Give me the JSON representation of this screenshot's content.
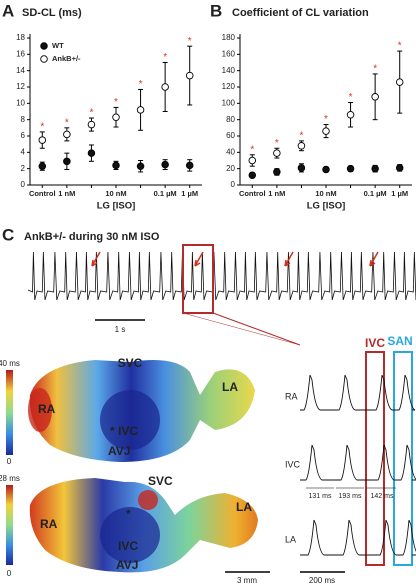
{
  "chart_data": [
    {
      "type": "dot",
      "panel": "A",
      "title": "SD-CL (ms)",
      "x_label": "LG [ISO]",
      "categories": [
        "Control",
        "1 nM",
        null,
        "10 nM",
        null,
        "0.1 µM",
        "1 µM"
      ],
      "ylim": [
        0,
        18
      ],
      "yticks": [
        0,
        2,
        4,
        6,
        8,
        10,
        12,
        14,
        16,
        18
      ],
      "legend": "upper left",
      "series": [
        {
          "name": "WT",
          "color": "#111111",
          "values": [
            2.3,
            2.9,
            3.9,
            2.4,
            2.3,
            2.5,
            2.4
          ],
          "errors": [
            0.5,
            1.0,
            1.0,
            0.5,
            0.7,
            0.6,
            0.7
          ]
        },
        {
          "name": "AnkB+/-",
          "color": "#ffffff",
          "values": [
            5.5,
            6.2,
            7.4,
            8.3,
            9.2,
            12,
            13.4
          ],
          "errors": [
            1.0,
            0.8,
            0.8,
            1.2,
            2.5,
            3.0,
            3.6
          ],
          "annotations": [
            "*",
            "*",
            "*",
            "*",
            "*",
            "*",
            "*"
          ]
        }
      ]
    },
    {
      "type": "dot",
      "panel": "B",
      "title": "Coefficient of CL variation",
      "x_label": "LG [ISO]",
      "categories": [
        "Control",
        "1 nM",
        null,
        "10 nM",
        null,
        "0.1 µM",
        "1 µM"
      ],
      "ylim": [
        0,
        180
      ],
      "yticks": [
        0,
        20,
        40,
        60,
        80,
        100,
        120,
        140,
        160,
        180
      ],
      "series": [
        {
          "name": "WT",
          "color": "#111111",
          "values": [
            12,
            16,
            21,
            19,
            20,
            20,
            21
          ],
          "errors": [
            2,
            4,
            5,
            3,
            3,
            4,
            4
          ]
        },
        {
          "name": "AnkB+/-",
          "color": "#ffffff",
          "values": [
            30,
            39,
            48,
            66,
            86,
            108,
            126
          ],
          "errors": [
            7,
            6,
            6,
            8,
            15,
            28,
            38
          ],
          "annotations": [
            "*",
            "*",
            "*",
            "*",
            "*",
            "*",
            "*"
          ]
        }
      ]
    }
  ],
  "panel_c": {
    "panel": "C",
    "title": "AnkB+/- during 30 nM ISO",
    "time_scale": "1 s",
    "map_top": {
      "scale_max": "40 ms",
      "scale_min": "0",
      "labels": [
        "SVC",
        "RA",
        "LA",
        "* IVC",
        "AVJ"
      ]
    },
    "map_bottom": {
      "scale_max": "28 ms",
      "scale_min": "0",
      "labels": [
        "SVC",
        "RA",
        "LA",
        "*",
        "IVC",
        "AVJ"
      ]
    },
    "space_scale": "3 mm",
    "traces": {
      "regions": [
        "IVC",
        "SAN"
      ],
      "leads": [
        "RA",
        "IVC",
        "LA"
      ],
      "intervals": [
        "131 ms",
        "193 ms",
        "142 ms"
      ],
      "time_scale": "200 ms"
    }
  }
}
